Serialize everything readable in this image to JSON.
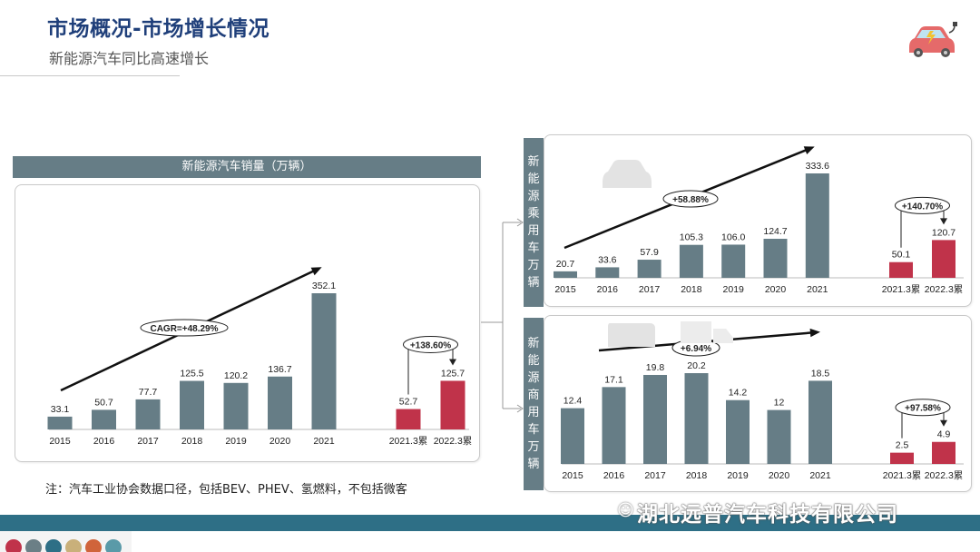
{
  "header": {
    "title": "市场概况-市场增长情况",
    "subtitle": "新能源汽车同比高速增长"
  },
  "left_panel": {
    "header": "新能源汽车销量（万辆）"
  },
  "right_top": {
    "side_label": [
      "新",
      "能",
      "源",
      "乘",
      "用",
      "车",
      "万",
      "辆"
    ]
  },
  "right_bottom": {
    "side_label": [
      "新",
      "能",
      "源",
      "商",
      "用",
      "车",
      "万",
      "辆"
    ]
  },
  "note": "注：汽车工业协会数据口径，包括BEV、PHEV、氢燃料，不包括微客",
  "watermark": "湖北远普汽车科技有限公司",
  "colors": {
    "bar_gray": "#667d86",
    "bar_red": "#c0334a",
    "title_blue": "#1f3f7a",
    "footer": "#2e6f86"
  },
  "footer_dots": [
    "#c0334a",
    "#6b7f86",
    "#2e6f86",
    "#c9b07a",
    "#d0643b",
    "#5a9aa8"
  ],
  "chart_data": [
    {
      "id": "total",
      "type": "bar",
      "title": "新能源汽车销量（万辆）",
      "categories": [
        "2015",
        "2016",
        "2017",
        "2018",
        "2019",
        "2020",
        "2021"
      ],
      "values": [
        33.1,
        50.7,
        77.7,
        125.5,
        120.2,
        136.7,
        352.1
      ],
      "compare": {
        "categories": [
          "2021.3累",
          "2022.3累"
        ],
        "values": [
          52.7,
          125.7
        ],
        "growth": "+138.60%"
      },
      "trend_label": "CAGR=+48.29%",
      "ylim": [
        0,
        352.1
      ]
    },
    {
      "id": "passenger",
      "type": "bar",
      "title": "新能源乘用车万辆",
      "categories": [
        "2015",
        "2016",
        "2017",
        "2018",
        "2019",
        "2020",
        "2021"
      ],
      "values": [
        20.7,
        33.6,
        57.9,
        105.3,
        106.0,
        124.7,
        333.6
      ],
      "value_labels": [
        "20.7",
        "33.6",
        "57.9",
        "105.3",
        "106.0",
        "124.7",
        "333.6"
      ],
      "compare": {
        "categories": [
          "2021.3累",
          "2022.3累"
        ],
        "values": [
          50.1,
          120.7
        ],
        "growth": "+140.70%"
      },
      "trend_label": "+58.88%",
      "ylim": [
        0,
        333.6
      ]
    },
    {
      "id": "commercial",
      "type": "bar",
      "title": "新能源商用车万辆",
      "categories": [
        "2015",
        "2016",
        "2017",
        "2018",
        "2019",
        "2020",
        "2021"
      ],
      "values": [
        12.4,
        17.1,
        19.8,
        20.2,
        14.2,
        12.0,
        18.5
      ],
      "compare": {
        "categories": [
          "2021.3累",
          "2022.3累"
        ],
        "values": [
          2.5,
          4.9
        ],
        "growth": "+97.58%"
      },
      "trend_label": "+6.94%",
      "ylim": [
        0,
        20.2
      ]
    }
  ]
}
